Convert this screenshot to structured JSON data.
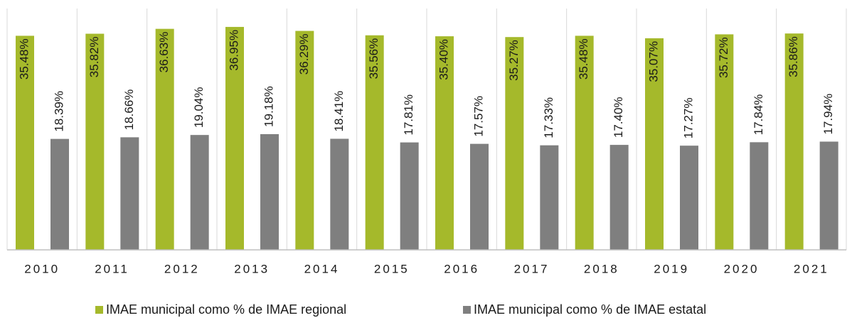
{
  "chart_data": {
    "type": "bar",
    "categories": [
      "2010",
      "2011",
      "2012",
      "2013",
      "2014",
      "2015",
      "2016",
      "2017",
      "2018",
      "2019",
      "2020",
      "2021"
    ],
    "series": [
      {
        "name": "IMAE municipal como % de IMAE regional",
        "color": "#a5b92b",
        "values": [
          35.48,
          35.82,
          36.63,
          36.95,
          36.29,
          35.56,
          35.4,
          35.27,
          35.48,
          35.07,
          35.72,
          35.86
        ],
        "value_labels": [
          "35.48%",
          "35.82%",
          "36.63%",
          "36.95%",
          "36.29%",
          "35.56%",
          "35.40%",
          "35.27%",
          "35.48%",
          "35.07%",
          "35.72%",
          "35.86%"
        ]
      },
      {
        "name": "IMAE municipal como % de IMAE estatal",
        "color": "#7f7f7f",
        "values": [
          18.39,
          18.66,
          19.04,
          19.18,
          18.41,
          17.81,
          17.57,
          17.33,
          17.4,
          17.27,
          17.84,
          17.94
        ],
        "value_labels": [
          "18.39%",
          "18.66%",
          "19.04%",
          "19.18%",
          "18.41%",
          "17.81%",
          "17.57%",
          "17.33%",
          "17.40%",
          "17.27%",
          "17.84%",
          "17.94%"
        ]
      }
    ],
    "ylim": [
      0,
      40
    ]
  }
}
